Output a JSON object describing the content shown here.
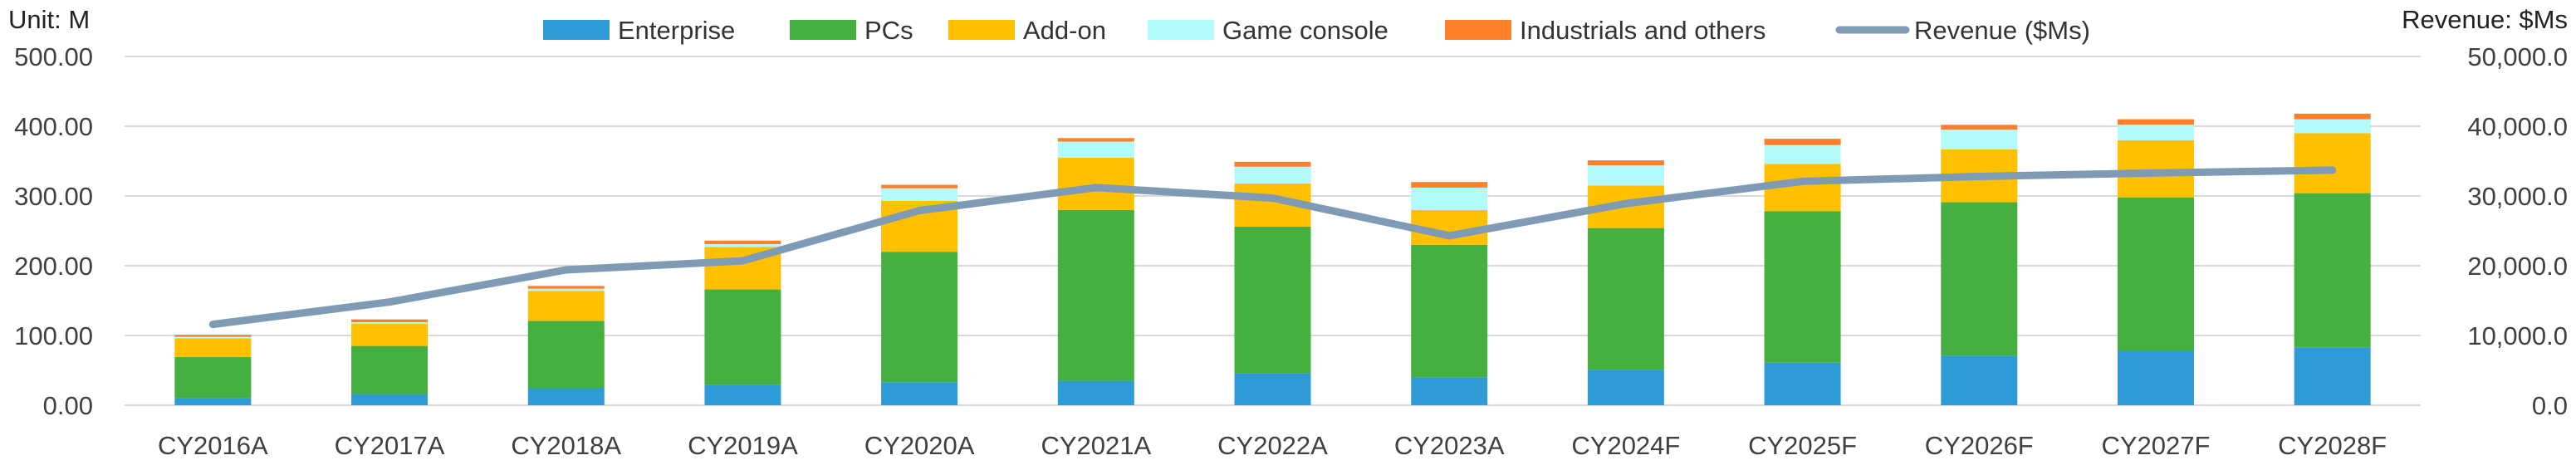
{
  "chart_data": {
    "type": "bar",
    "stacked": true,
    "title": "",
    "left_unit_label": "Unit: M",
    "right_unit_label": "Revenue: $Ms",
    "categories": [
      "CY2016A",
      "CY2017A",
      "CY2018A",
      "CY2019A",
      "CY2020A",
      "CY2021A",
      "CY2022A",
      "CY2023A",
      "CY2024F",
      "CY2025F",
      "CY2026F",
      "CY2027F",
      "CY2028F"
    ],
    "y_left": {
      "min": 0,
      "max": 500,
      "ticks": [
        "0.00",
        "100.00",
        "200.00",
        "300.00",
        "400.00",
        "500.00"
      ]
    },
    "y_right": {
      "min": 0,
      "max": 50000,
      "ticks": [
        "0.0",
        "10,000.0",
        "20,000.0",
        "30,000.0",
        "40,000.0",
        "50,000.0"
      ]
    },
    "grid": true,
    "legend_position": "top",
    "series": [
      {
        "name": "Enterprise",
        "axis": "left",
        "color": "#2e9bd6",
        "values": [
          10,
          16,
          25,
          29,
          33,
          35,
          46,
          40,
          51,
          61,
          71,
          78,
          83
        ]
      },
      {
        "name": "PCs",
        "axis": "left",
        "color": "#45b03f",
        "values": [
          59,
          69,
          96,
          137,
          187,
          245,
          210,
          190,
          203,
          217,
          220,
          220,
          221
        ]
      },
      {
        "name": "Add-on",
        "axis": "left",
        "color": "#ffc000",
        "values": [
          27,
          32,
          43,
          61,
          73,
          75,
          62,
          50,
          61,
          68,
          76,
          82,
          86
        ]
      },
      {
        "name": "Game console",
        "axis": "left",
        "color": "#b3fafa",
        "values": [
          2,
          2,
          3,
          4,
          18,
          23,
          24,
          32,
          29,
          27,
          28,
          22,
          20
        ]
      },
      {
        "name": "Industrials and others",
        "axis": "left",
        "color": "#ff7f2a",
        "values": [
          3,
          4,
          4,
          5,
          5,
          5,
          7,
          8,
          7,
          9,
          7,
          8,
          8
        ]
      }
    ],
    "line": {
      "name": "Revenue ($Ms)",
      "axis": "right",
      "color": "#7f9ab5",
      "values": [
        11600,
        14800,
        19400,
        20700,
        27900,
        31200,
        29700,
        24300,
        28900,
        32100,
        32800,
        33300,
        33700
      ]
    }
  }
}
